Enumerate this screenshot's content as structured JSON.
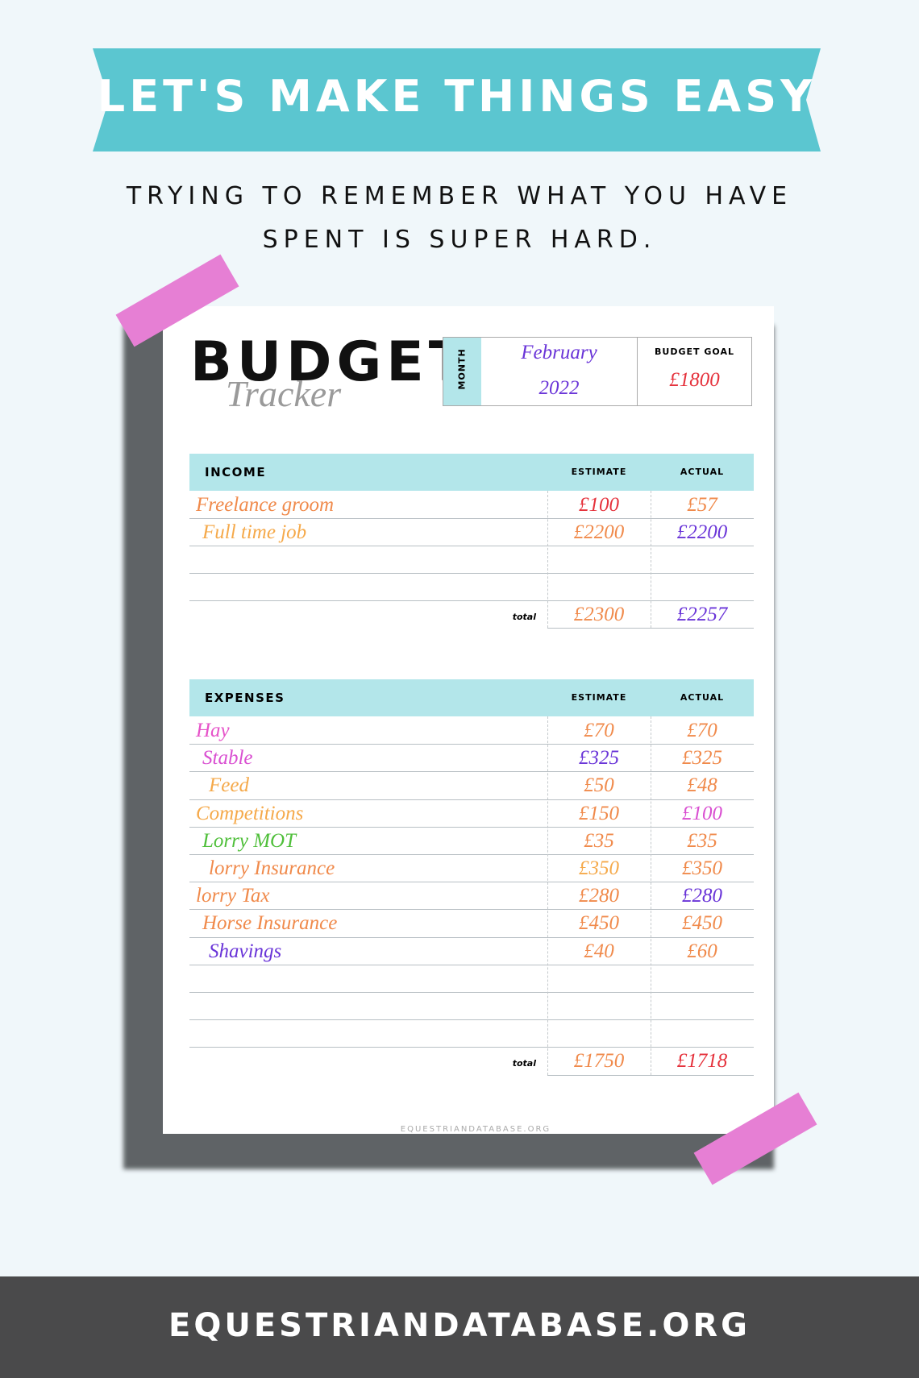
{
  "banner": {
    "title": "LET'S MAKE THINGS EASY"
  },
  "subtitle": {
    "lines": [
      "TRYING TO REMEMBER WHAT YOU HAVE",
      "SPENT IS SUPER HARD."
    ]
  },
  "tracker": {
    "title": "BUDGET",
    "script": "Tracker",
    "month_label": "MONTH",
    "month": "February",
    "year": "2022",
    "goal_label": "BUDGET GOAL",
    "goal": "£1800",
    "income": {
      "header": [
        "INCOME",
        "ESTIMATE",
        "ACTUAL"
      ],
      "rows": [
        [
          "Freelance groom",
          "£100",
          "£57"
        ],
        [
          "Full time job",
          "£2200",
          "£2200"
        ]
      ],
      "total": [
        "total",
        "£2300",
        "£2257"
      ]
    },
    "expenses": {
      "header": [
        "EXPENSES",
        "ESTIMATE",
        "ACTUAL"
      ],
      "rows": [
        [
          "Hay",
          "£70",
          "£70"
        ],
        [
          "Stable",
          "£325",
          "£325"
        ],
        [
          "Feed",
          "£50",
          "£48"
        ],
        [
          "Competitions",
          "£150",
          "£100"
        ],
        [
          "Lorry MOT",
          "£35",
          "£35"
        ],
        [
          "lorry Insurance",
          "£350",
          "£350"
        ],
        [
          "lorry Tax",
          "£280",
          "£280"
        ],
        [
          "Horse Insurance",
          "£450",
          "£450"
        ],
        [
          "Shavings",
          "£40",
          "£60"
        ]
      ],
      "total": [
        "total",
        "£1750",
        "£1718"
      ]
    },
    "footer": "EQUESTRIANDATABASE.ORG"
  },
  "footer": {
    "site": "EQUESTRIANDATABASE.ORG"
  }
}
